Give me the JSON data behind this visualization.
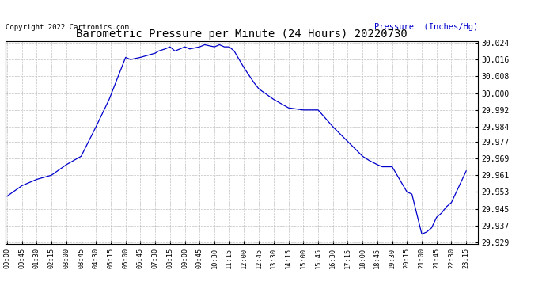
{
  "title": "Barometric Pressure per Minute (24 Hours) 20220730",
  "copyright": "Copyright 2022 Cartronics.com",
  "ylabel": "Pressure  (Inches/Hg)",
  "ylabel_color": "#0000CC",
  "line_color": "#0000CC",
  "background_color": "#ffffff",
  "grid_color": "#b0b0b0",
  "ylim_min": 29.929,
  "ylim_max": 30.024,
  "yticks": [
    29.929,
    29.937,
    29.945,
    29.953,
    29.961,
    29.969,
    29.977,
    29.984,
    29.992,
    30.0,
    30.008,
    30.016,
    30.024
  ],
  "xtick_labels": [
    "00:00",
    "00:45",
    "01:30",
    "02:15",
    "03:00",
    "03:45",
    "04:30",
    "05:15",
    "06:00",
    "06:45",
    "07:30",
    "08:15",
    "09:00",
    "09:45",
    "10:30",
    "11:15",
    "12:00",
    "12:45",
    "13:30",
    "14:15",
    "15:00",
    "15:45",
    "16:30",
    "17:15",
    "18:00",
    "18:45",
    "19:30",
    "20:15",
    "21:00",
    "21:45",
    "22:30",
    "23:15"
  ],
  "x_values": [
    0,
    45,
    90,
    135,
    180,
    225,
    270,
    315,
    360,
    405,
    450,
    495,
    540,
    585,
    630,
    675,
    720,
    765,
    810,
    855,
    900,
    945,
    990,
    1035,
    1080,
    1125,
    1170,
    1215,
    1260,
    1305,
    1350,
    1395
  ],
  "key_x": [
    0,
    45,
    90,
    135,
    180,
    225,
    270,
    310,
    360,
    375,
    405,
    450,
    460,
    480,
    495,
    510,
    540,
    555,
    585,
    600,
    630,
    645,
    660,
    675,
    690,
    720,
    750,
    765,
    810,
    855,
    900,
    945,
    990,
    1035,
    1080,
    1100,
    1125,
    1140,
    1155,
    1170,
    1215,
    1230,
    1260,
    1275,
    1290,
    1305,
    1320,
    1335,
    1350,
    1365,
    1380,
    1395
  ],
  "key_y": [
    29.951,
    29.956,
    29.959,
    29.961,
    29.966,
    29.97,
    29.984,
    29.997,
    30.017,
    30.016,
    30.017,
    30.019,
    30.02,
    30.021,
    30.022,
    30.02,
    30.022,
    30.021,
    30.022,
    30.023,
    30.022,
    30.023,
    30.022,
    30.022,
    30.02,
    30.012,
    30.005,
    30.002,
    29.997,
    29.993,
    29.992,
    29.992,
    29.984,
    29.977,
    29.97,
    29.968,
    29.966,
    29.965,
    29.965,
    29.965,
    29.953,
    29.952,
    29.933,
    29.934,
    29.936,
    29.941,
    29.943,
    29.946,
    29.948,
    29.953,
    29.958,
    29.963
  ]
}
